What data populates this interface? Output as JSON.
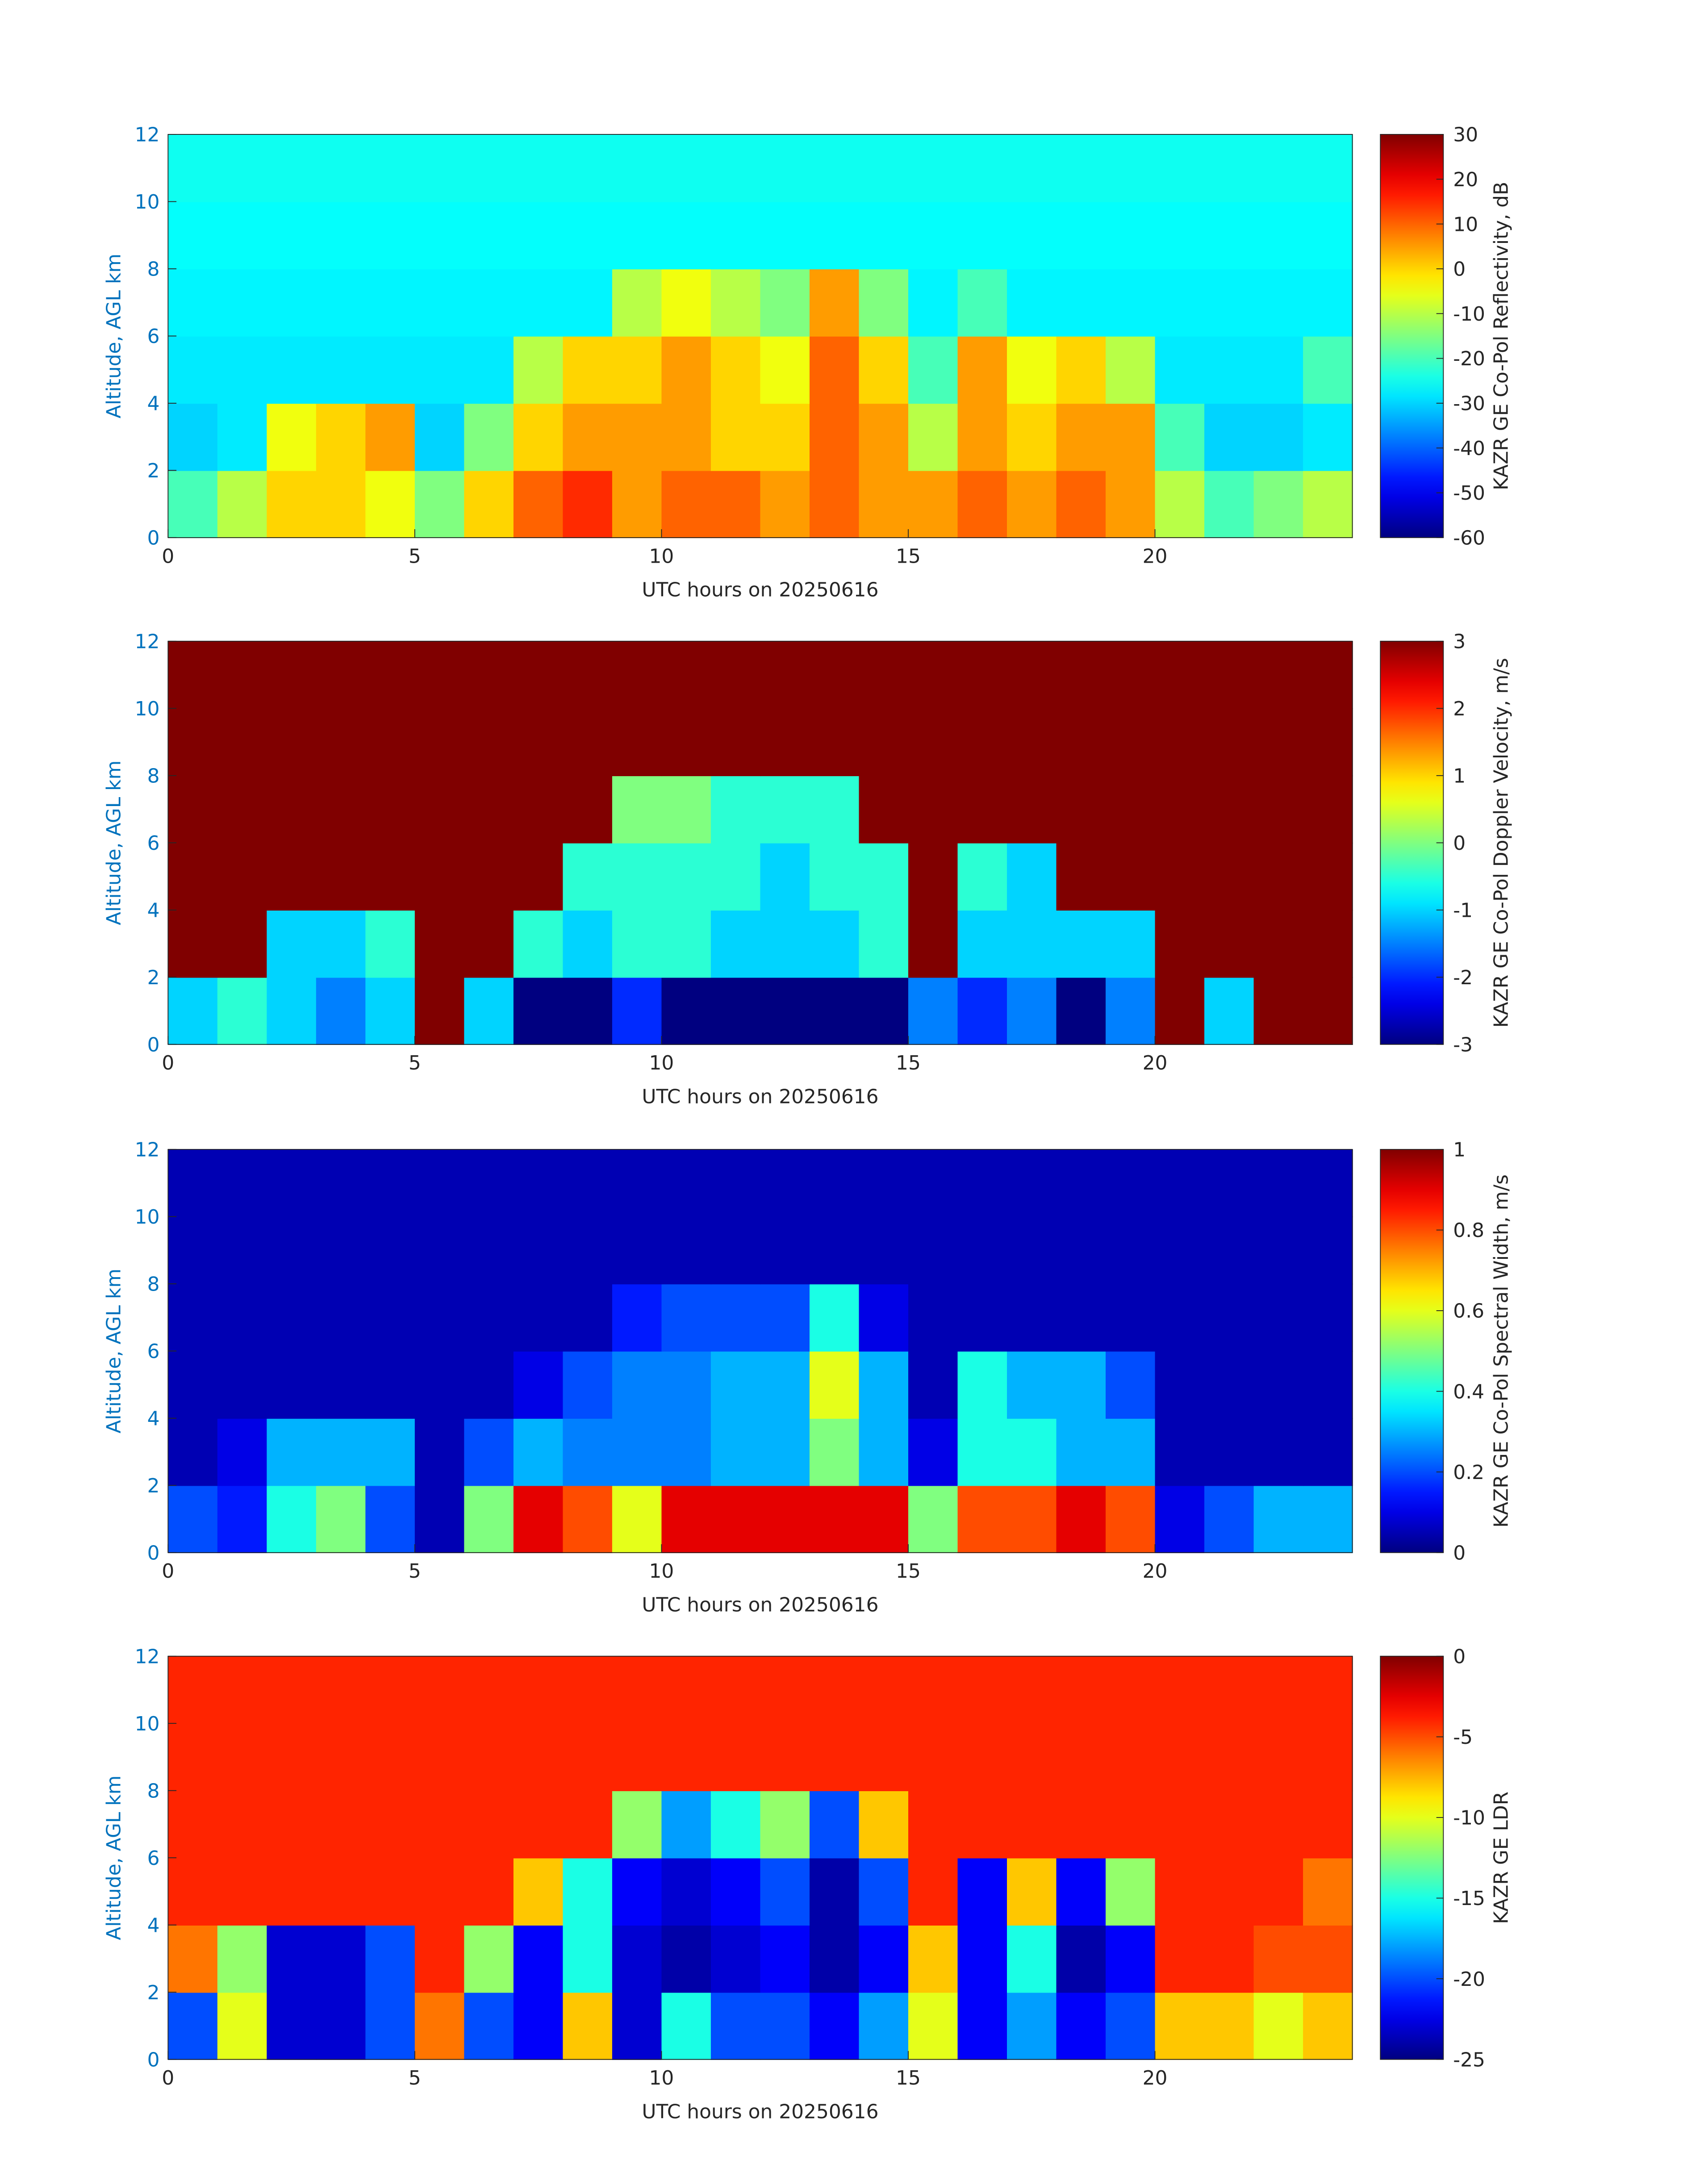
{
  "chart_data": [
    {
      "type": "heatmap",
      "xlabel": "UTC hours on 20250616",
      "ylabel": "Altitude, AGL km",
      "colorbar_label": "KAZR GE Co-Pol Reflectivity, dB",
      "colormap": "jet",
      "xlim": [
        0,
        24
      ],
      "ylim": [
        0,
        12
      ],
      "xticks": [
        0,
        5,
        10,
        15,
        20
      ],
      "yticks": [
        0,
        2,
        4,
        6,
        8,
        10,
        12
      ],
      "clim": [
        -60,
        30
      ],
      "cticks": [
        -60,
        -50,
        -40,
        -30,
        -20,
        -10,
        0,
        10,
        20,
        30
      ],
      "xbins": [
        0,
        1,
        2,
        3,
        4,
        5,
        6,
        7,
        8,
        9,
        10,
        11,
        12,
        13,
        14,
        15,
        16,
        17,
        18,
        19,
        20,
        21,
        22,
        23,
        24
      ],
      "ybins": [
        0,
        2,
        4,
        6,
        8,
        10,
        12
      ],
      "z": [
        [
          -20,
          -10,
          0,
          0,
          -5,
          -15,
          0,
          10,
          15,
          5,
          10,
          10,
          5,
          10,
          5,
          5,
          10,
          5,
          10,
          5,
          -10,
          -20,
          -15,
          -10
        ],
        [
          -30,
          -28,
          -5,
          0,
          5,
          -30,
          -15,
          0,
          5,
          5,
          5,
          0,
          0,
          10,
          5,
          -10,
          5,
          0,
          5,
          5,
          -20,
          -30,
          -30,
          -28
        ],
        [
          -28,
          -28,
          -28,
          -28,
          -28,
          -28,
          -28,
          -10,
          0,
          0,
          5,
          0,
          -5,
          10,
          0,
          -20,
          5,
          -5,
          0,
          -10,
          -28,
          -28,
          -28,
          -20
        ],
        [
          -27,
          -27,
          -27,
          -27,
          -27,
          -27,
          -27,
          -27,
          -27,
          -10,
          -5,
          -10,
          -15,
          5,
          -15,
          -27,
          -20,
          -27,
          -27,
          -27,
          -27,
          -27,
          -27,
          -27
        ],
        [
          -26,
          -26,
          -26,
          -26,
          -26,
          -26,
          -26,
          -26,
          -26,
          -26,
          -26,
          -26,
          -26,
          -26,
          -26,
          -26,
          -26,
          -26,
          -26,
          -26,
          -26,
          -26,
          -26,
          -26
        ],
        [
          -25,
          -25,
          -25,
          -25,
          -25,
          -25,
          -25,
          -25,
          -25,
          -25,
          -25,
          -25,
          -25,
          -25,
          -25,
          -25,
          -25,
          -25,
          -25,
          -25,
          -25,
          -25,
          -25,
          -25
        ]
      ]
    },
    {
      "type": "heatmap",
      "xlabel": "UTC hours on 20250616",
      "ylabel": "Altitude, AGL km",
      "colorbar_label": "KAZR GE Co-Pol Doppler Velocity, m/s",
      "colormap": "jet",
      "xlim": [
        0,
        24
      ],
      "ylim": [
        0,
        12
      ],
      "xticks": [
        0,
        5,
        10,
        15,
        20
      ],
      "yticks": [
        0,
        2,
        4,
        6,
        8,
        10,
        12
      ],
      "clim": [
        -3,
        3
      ],
      "cticks": [
        -3,
        -2,
        -1,
        0,
        1,
        2,
        3
      ],
      "xbins": [
        0,
        1,
        2,
        3,
        4,
        5,
        6,
        7,
        8,
        9,
        10,
        11,
        12,
        13,
        14,
        15,
        16,
        17,
        18,
        19,
        20,
        21,
        22,
        23,
        24
      ],
      "ybins": [
        0,
        2,
        4,
        6,
        8,
        10,
        12
      ],
      "z": [
        [
          -1,
          -0.5,
          -1,
          -1.5,
          -1,
          3,
          -1,
          -3,
          -3,
          -2,
          -3,
          -3,
          -3,
          -3,
          -3,
          -1.5,
          -2,
          -1.5,
          -3,
          -1.5,
          3,
          -1,
          3,
          3
        ],
        [
          3,
          3,
          -1,
          -1,
          -0.5,
          3,
          3,
          -0.5,
          -1,
          -0.5,
          -0.5,
          -1,
          -1,
          -1,
          -0.5,
          3,
          -1,
          -1,
          -1,
          -1,
          3,
          3,
          3,
          3
        ],
        [
          3,
          3,
          3,
          3,
          3,
          3,
          3,
          3,
          -0.5,
          -0.5,
          -0.5,
          -0.5,
          -1,
          -0.5,
          -0.5,
          3,
          -0.5,
          -1,
          3,
          3,
          3,
          3,
          3,
          3
        ],
        [
          3,
          3,
          3,
          3,
          3,
          3,
          3,
          3,
          3,
          0,
          0,
          -0.5,
          -0.5,
          -0.5,
          3,
          3,
          3,
          3,
          3,
          3,
          3,
          3,
          3,
          3
        ],
        [
          3,
          3,
          3,
          3,
          3,
          3,
          3,
          3,
          3,
          3,
          3,
          3,
          3,
          3,
          3,
          3,
          3,
          3,
          3,
          3,
          3,
          3,
          3,
          3
        ],
        [
          3,
          3,
          3,
          3,
          3,
          3,
          3,
          3,
          3,
          3,
          3,
          3,
          3,
          3,
          3,
          3,
          3,
          3,
          3,
          3,
          3,
          3,
          3,
          3
        ]
      ]
    },
    {
      "type": "heatmap",
      "xlabel": "UTC hours on 20250616",
      "ylabel": "Altitude, AGL km",
      "colorbar_label": "KAZR GE Co-Pol Spectral Width, m/s",
      "colormap": "jet",
      "xlim": [
        0,
        24
      ],
      "ylim": [
        0,
        12
      ],
      "xticks": [
        0,
        5,
        10,
        15,
        20
      ],
      "yticks": [
        0,
        2,
        4,
        6,
        8,
        10,
        12
      ],
      "clim": [
        0,
        1
      ],
      "cticks": [
        0,
        0.2,
        0.4,
        0.6,
        0.8,
        1
      ],
      "xbins": [
        0,
        1,
        2,
        3,
        4,
        5,
        6,
        7,
        8,
        9,
        10,
        11,
        12,
        13,
        14,
        15,
        16,
        17,
        18,
        19,
        20,
        21,
        22,
        23,
        24
      ],
      "ybins": [
        0,
        2,
        4,
        6,
        8,
        10,
        12
      ],
      "z": [
        [
          0.2,
          0.15,
          0.4,
          0.5,
          0.2,
          0.05,
          0.5,
          0.9,
          0.8,
          0.6,
          0.9,
          0.9,
          0.9,
          0.9,
          0.9,
          0.5,
          0.8,
          0.8,
          0.9,
          0.8,
          0.1,
          0.2,
          0.3,
          0.3
        ],
        [
          0.05,
          0.1,
          0.3,
          0.3,
          0.3,
          0.05,
          0.2,
          0.3,
          0.25,
          0.25,
          0.25,
          0.3,
          0.3,
          0.5,
          0.3,
          0.1,
          0.4,
          0.4,
          0.3,
          0.3,
          0.05,
          0.05,
          0.05,
          0.05
        ],
        [
          0.05,
          0.05,
          0.05,
          0.05,
          0.05,
          0.05,
          0.05,
          0.1,
          0.2,
          0.25,
          0.25,
          0.3,
          0.3,
          0.6,
          0.3,
          0.05,
          0.4,
          0.3,
          0.3,
          0.2,
          0.05,
          0.05,
          0.05,
          0.05
        ],
        [
          0.05,
          0.05,
          0.05,
          0.05,
          0.05,
          0.05,
          0.05,
          0.05,
          0.05,
          0.15,
          0.2,
          0.2,
          0.2,
          0.4,
          0.1,
          0.05,
          0.05,
          0.05,
          0.05,
          0.05,
          0.05,
          0.05,
          0.05,
          0.05
        ],
        [
          0.05,
          0.05,
          0.05,
          0.05,
          0.05,
          0.05,
          0.05,
          0.05,
          0.05,
          0.05,
          0.05,
          0.05,
          0.05,
          0.05,
          0.05,
          0.05,
          0.05,
          0.05,
          0.05,
          0.05,
          0.05,
          0.05,
          0.05,
          0.05
        ],
        [
          0.05,
          0.05,
          0.05,
          0.05,
          0.05,
          0.05,
          0.05,
          0.05,
          0.05,
          0.05,
          0.05,
          0.05,
          0.05,
          0.05,
          0.05,
          0.05,
          0.05,
          0.05,
          0.05,
          0.05,
          0.05,
          0.05,
          0.05,
          0.05
        ]
      ]
    },
    {
      "type": "heatmap",
      "xlabel": "UTC hours on 20250616",
      "ylabel": "Altitude, AGL km",
      "colorbar_label": "KAZR GE LDR",
      "colormap": "jet",
      "xlim": [
        0,
        24
      ],
      "ylim": [
        0,
        12
      ],
      "xticks": [
        0,
        5,
        10,
        15,
        20
      ],
      "yticks": [
        0,
        2,
        4,
        6,
        8,
        10,
        12
      ],
      "clim": [
        -25,
        0
      ],
      "cticks": [
        -25,
        -20,
        -15,
        -10,
        -5,
        0
      ],
      "xbins": [
        0,
        1,
        2,
        3,
        4,
        5,
        6,
        7,
        8,
        9,
        10,
        11,
        12,
        13,
        14,
        15,
        16,
        17,
        18,
        19,
        20,
        21,
        22,
        23,
        24
      ],
      "ybins": [
        0,
        2,
        4,
        6,
        8,
        10,
        12
      ],
      "z": [
        [
          -20,
          -10,
          -23,
          -23,
          -20,
          -6,
          -20,
          -22,
          -8,
          -23,
          -15,
          -20,
          -20,
          -22,
          -18,
          -10,
          -22,
          -18,
          -22,
          -20,
          -8,
          -8,
          -10,
          -8
        ],
        [
          -6,
          -12,
          -23,
          -23,
          -20,
          -4,
          -12,
          -22,
          -15,
          -23,
          -24,
          -23,
          -22,
          -24,
          -22,
          -8,
          -22,
          -15,
          -24,
          -22,
          -4,
          -4,
          -5,
          -5
        ],
        [
          -4,
          -4,
          -4,
          -4,
          -4,
          -4,
          -4,
          -8,
          -15,
          -22,
          -23,
          -22,
          -20,
          -24,
          -20,
          -4,
          -22,
          -8,
          -22,
          -12,
          -4,
          -4,
          -4,
          -6
        ],
        [
          -4,
          -4,
          -4,
          -4,
          -4,
          -4,
          -4,
          -4,
          -4,
          -12,
          -18,
          -15,
          -12,
          -20,
          -8,
          -4,
          -4,
          -4,
          -4,
          -4,
          -4,
          -4,
          -4,
          -4
        ],
        [
          -4,
          -4,
          -4,
          -4,
          -4,
          -4,
          -4,
          -4,
          -4,
          -4,
          -4,
          -4,
          -4,
          -4,
          -4,
          -4,
          -4,
          -4,
          -4,
          -4,
          -4,
          -4,
          -4,
          -4
        ],
        [
          -4,
          -4,
          -4,
          -4,
          -4,
          -4,
          -4,
          -4,
          -4,
          -4,
          -4,
          -4,
          -4,
          -4,
          -4,
          -4,
          -4,
          -4,
          -4,
          -4,
          -4,
          -4,
          -4,
          -4
        ]
      ]
    }
  ]
}
